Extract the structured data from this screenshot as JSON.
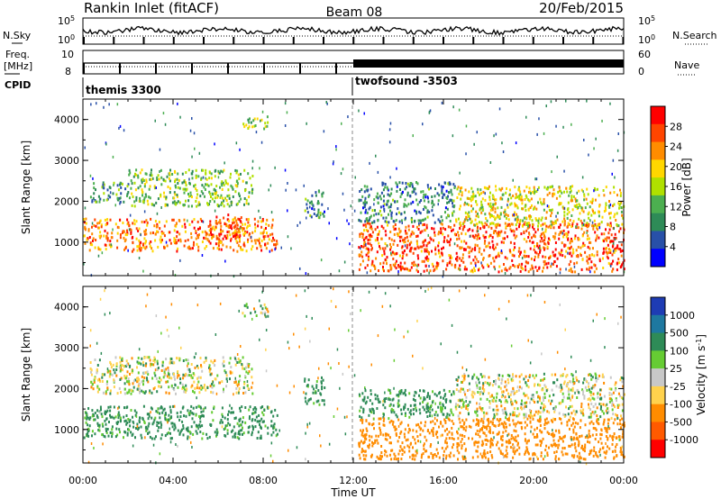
{
  "header": {
    "title": "Rankin Inlet (fitACF)",
    "beam": "Beam 08",
    "date": "20/Feb/2015"
  },
  "top_panels": {
    "nsky_label": "N.Sky",
    "nsky_ticks": [
      "10^5",
      "10^0"
    ],
    "nsearch_label": "N.Search",
    "nsearch_ticks": [
      "10^5",
      "10^0"
    ],
    "freq_label_1": "Freq.",
    "freq_label_2": "[MHz]",
    "freq_ticks": [
      "10",
      "8"
    ],
    "nave_label": "Nave",
    "nave_ticks": [
      "60",
      "0"
    ],
    "cpid_label": "CPID",
    "cpid_entries": [
      "themis 3300",
      "twofsound -3503"
    ]
  },
  "colors": {
    "power": [
      "#0000ff",
      "#2850a8",
      "#2e8b57",
      "#4caf50",
      "#b0e000",
      "#ffd700",
      "#ff8c00",
      "#ff4500",
      "#ff0000"
    ],
    "velocity": [
      "#1e3cb4",
      "#1e78a0",
      "#2e8b57",
      "#66cc33",
      "#c8c8c8",
      "#ffd24d",
      "#ff8c00",
      "#ff5a00",
      "#ff0000"
    ]
  },
  "chart_data": [
    {
      "type": "heatmap",
      "name": "power",
      "ylabel": "Slant Range [km]",
      "yticks": [
        "4000",
        "3000",
        "2000",
        "1000"
      ],
      "ylim": [
        180,
        4500
      ],
      "xlim": [
        0,
        24
      ],
      "colorbar_label": "Power [dB]",
      "colorbar_ticks": [
        "28",
        "24",
        "20",
        "16",
        "12",
        "8",
        "4"
      ],
      "colorbar_range": [
        0,
        32
      ],
      "bands": [
        {
          "x": [
            0,
            8.6
          ],
          "y": [
            800,
            1600
          ],
          "value": 24
        },
        {
          "x": [
            2.0,
            7.5
          ],
          "y": [
            1900,
            2800
          ],
          "value": 14
        },
        {
          "x": [
            0.3,
            2.0
          ],
          "y": [
            2000,
            2500
          ],
          "value": 10
        },
        {
          "x": [
            5.5,
            7.0
          ],
          "y": [
            1100,
            1700
          ],
          "value": 27
        },
        {
          "x": [
            9.8,
            10.7
          ],
          "y": [
            1600,
            2300
          ],
          "value": 9
        },
        {
          "x": [
            12.2,
            24
          ],
          "y": [
            300,
            1500
          ],
          "value": 26
        },
        {
          "x": [
            12.2,
            16.5
          ],
          "y": [
            1500,
            2500
          ],
          "value": 9
        },
        {
          "x": [
            16.5,
            24
          ],
          "y": [
            1400,
            2400
          ],
          "value": 18
        },
        {
          "x": [
            7.0,
            8.2
          ],
          "y": [
            3800,
            4100
          ],
          "value": 15
        }
      ]
    },
    {
      "type": "heatmap",
      "name": "velocity",
      "ylabel": "Slant Range [km]",
      "yticks": [
        "4000",
        "3000",
        "2000",
        "1000"
      ],
      "ylim": [
        180,
        4500
      ],
      "xlim": [
        0,
        24
      ],
      "xlabel": "Time UT",
      "xticks": [
        "00:00",
        "04:00",
        "08:00",
        "12:00",
        "16:00",
        "20:00",
        "00:00"
      ],
      "colorbar_label": "Velocity [m s^-1]",
      "colorbar_ticks": [
        "1000",
        "500",
        "100",
        "25",
        "-25",
        "-100",
        "-500",
        "-1000"
      ],
      "bands": [
        {
          "x": [
            0,
            8.6
          ],
          "y": [
            800,
            1600
          ],
          "value": 200
        },
        {
          "x": [
            0.3,
            7.5
          ],
          "y": [
            1900,
            2800
          ],
          "value": 0
        },
        {
          "x": [
            9.8,
            10.7
          ],
          "y": [
            1600,
            2300
          ],
          "value": 200
        },
        {
          "x": [
            12.2,
            16.5
          ],
          "y": [
            1300,
            2000
          ],
          "value": 200
        },
        {
          "x": [
            12.2,
            24
          ],
          "y": [
            300,
            1300
          ],
          "value": -300
        },
        {
          "x": [
            16.5,
            24
          ],
          "y": [
            1300,
            2400
          ],
          "value": 0
        },
        {
          "x": [
            7.0,
            8.2
          ],
          "y": [
            3800,
            4100
          ],
          "value": 0
        }
      ]
    }
  ]
}
